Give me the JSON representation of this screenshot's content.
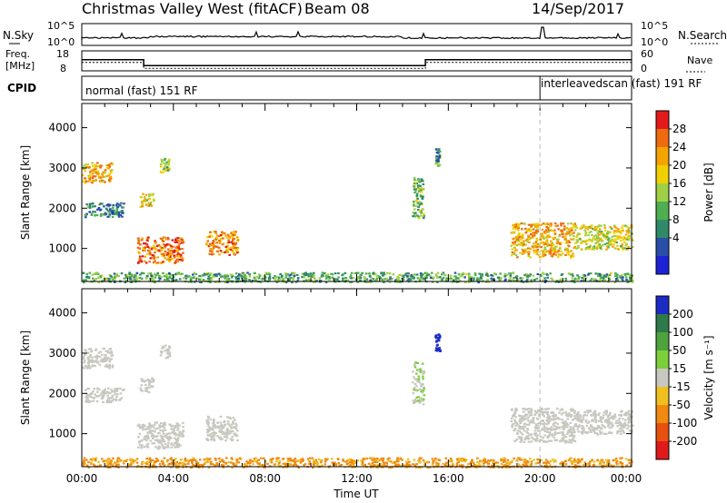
{
  "header": {
    "title": "Christmas Valley West (fitACF)",
    "beam": "Beam 08",
    "date": "14/Sep/2017"
  },
  "top_panel": {
    "left_label": "N.Sky",
    "left_ticks": [
      "10^5",
      "10^0"
    ],
    "right_label": "N.Search",
    "right_ticks": [
      "10^5",
      "10^0"
    ]
  },
  "freq_panel": {
    "left_label_1": "Freq.",
    "left_label_2": "[MHz]",
    "left_ticks": [
      "18",
      "8"
    ],
    "right_label": "Nave",
    "right_ticks": [
      "60",
      "0"
    ]
  },
  "cpid_panel": {
    "label": "CPID",
    "segment_1": "normal (fast)  151 RF",
    "segment_2": "interleavedscan (fast)  191 RF"
  },
  "power_panel": {
    "ylabel": "Slant Range [km]",
    "yticks": [
      "4000",
      "3000",
      "2000",
      "1000"
    ],
    "colorbar_label": "Power [dB]",
    "colorbar_ticks": [
      "28",
      "24",
      "20",
      "16",
      "12",
      "8",
      "4"
    ],
    "colors": [
      "#1e22d6",
      "#2b4fa8",
      "#2f8a6a",
      "#4fae4f",
      "#9fd046",
      "#f0d000",
      "#f4a400",
      "#f06a10",
      "#e21a1a"
    ]
  },
  "velocity_panel": {
    "ylabel": "Slant Range [km]",
    "yticks": [
      "4000",
      "3000",
      "2000",
      "1000"
    ],
    "colorbar_label": "Velocity [m s⁻¹]",
    "colorbar_ticks": [
      "200",
      "100",
      "50",
      "15",
      "-15",
      "-50",
      "-100",
      "-200"
    ],
    "colors": [
      "#1c2bc4",
      "#2e7a4a",
      "#4fa33f",
      "#7ccf3a",
      "#c8c8c0",
      "#f0c020",
      "#f08a10",
      "#e85010",
      "#e01a1a"
    ]
  },
  "x_axis": {
    "ticks": [
      "00:00",
      "04:00",
      "08:00",
      "12:00",
      "16:00",
      "20:00",
      "00:00"
    ],
    "label": "Time UT"
  },
  "chart_data": {
    "type": "heatmap",
    "title": "Christmas Valley West (fitACF)",
    "xlabel": "Time UT",
    "ylabel": "Slant Range [km]",
    "xlim": [
      0,
      24
    ],
    "ylim": [
      180,
      4600
    ],
    "x_ticks": [
      "00:00",
      "04:00",
      "08:00",
      "12:00",
      "16:00",
      "20:00",
      "00:00"
    ],
    "y_ticks": [
      1000,
      2000,
      3000,
      4000
    ],
    "vertical_marker_hour": 20,
    "cpid_change_hour": 20,
    "freq_steps": [
      {
        "start": 0,
        "end": 2.7,
        "freq": 15
      },
      {
        "start": 2.7,
        "end": 15,
        "freq": 11
      },
      {
        "start": 15,
        "end": 24,
        "freq": 15
      }
    ],
    "power_colorbar": {
      "label": "Power [dB]",
      "range": [
        0,
        32
      ],
      "ticks": [
        4,
        8,
        12,
        16,
        20,
        24,
        28
      ]
    },
    "velocity_colorbar": {
      "label": "Velocity [m s-1]",
      "ticks": [
        -200,
        -100,
        -50,
        -15,
        15,
        50,
        100,
        200
      ]
    },
    "scatter_regions": [
      {
        "t0": 0.0,
        "t1": 1.3,
        "r0": 2650,
        "r1": 3150,
        "power": 22,
        "velocity": 0
      },
      {
        "t0": 0.1,
        "t1": 1.8,
        "r0": 1800,
        "r1": 2150,
        "power": 9,
        "velocity": 0
      },
      {
        "t0": 2.5,
        "t1": 3.1,
        "r0": 2050,
        "r1": 2400,
        "power": 20,
        "velocity": 0
      },
      {
        "t0": 3.4,
        "t1": 3.8,
        "r0": 2900,
        "r1": 3250,
        "power": 16,
        "velocity": 0
      },
      {
        "t0": 2.4,
        "t1": 4.4,
        "r0": 650,
        "r1": 1300,
        "power": 26,
        "velocity": 0
      },
      {
        "t0": 5.4,
        "t1": 6.8,
        "r0": 850,
        "r1": 1450,
        "power": 24,
        "velocity": 0
      },
      {
        "t0": 14.4,
        "t1": 14.9,
        "r0": 1750,
        "r1": 2800,
        "power": 14,
        "velocity": 10
      },
      {
        "t0": 15.4,
        "t1": 15.6,
        "r0": 3050,
        "r1": 3500,
        "power": 10,
        "velocity": 200
      },
      {
        "t0": 18.7,
        "t1": 21.5,
        "r0": 800,
        "r1": 1650,
        "power": 22,
        "velocity": 0
      },
      {
        "t0": 21.5,
        "t1": 24.0,
        "r0": 1000,
        "r1": 1600,
        "power": 18,
        "velocity": 0
      },
      {
        "t0": 0.0,
        "t1": 24.0,
        "r0": 180,
        "r1": 420,
        "power": 12,
        "velocity": -40
      }
    ]
  }
}
